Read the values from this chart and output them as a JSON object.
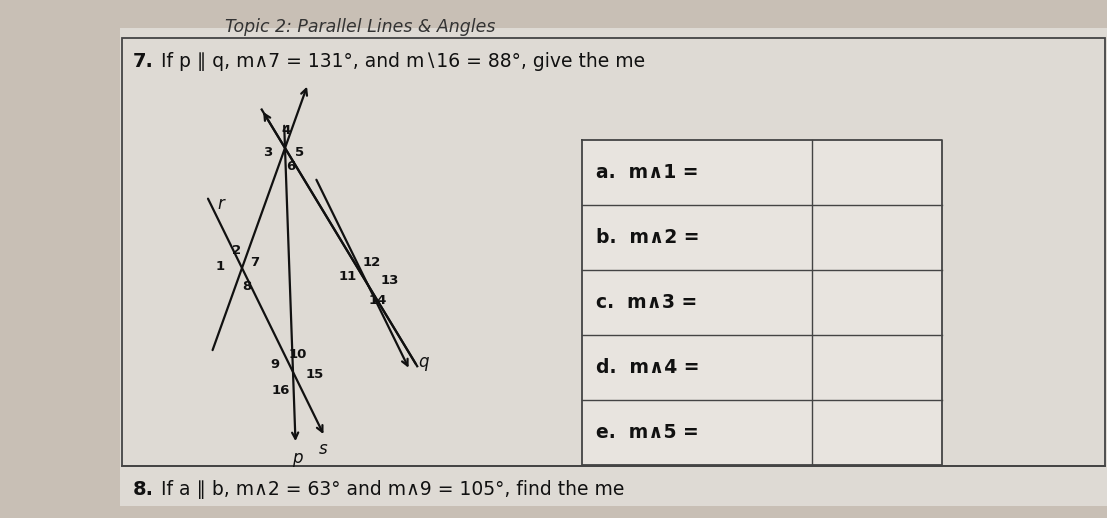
{
  "title": "Topic 2: Parallel Lines & Angles",
  "question_text_bold": "7.",
  "question_text_normal": " If p ∥ q, m∧7 = 131°, and m∖16 = 88°, give the me",
  "bottom_text_bold": "8.",
  "bottom_text_normal": " If a ∥ b, m∧2 = 63° and m∧9 = 105°, find the me",
  "answers": [
    "a.  m∧1 =",
    "b.  m∧2 =",
    "c.  m∧3 =",
    "d.  m∧4 =",
    "e.  m∧5 ="
  ],
  "bg_color": "#c8bfb5",
  "paper_color": "#dedad4",
  "line_color": "#111111",
  "border_color": "#444444",
  "title_color": "#333333",
  "text_color": "#111111",
  "table_bg": "#e8e4df"
}
